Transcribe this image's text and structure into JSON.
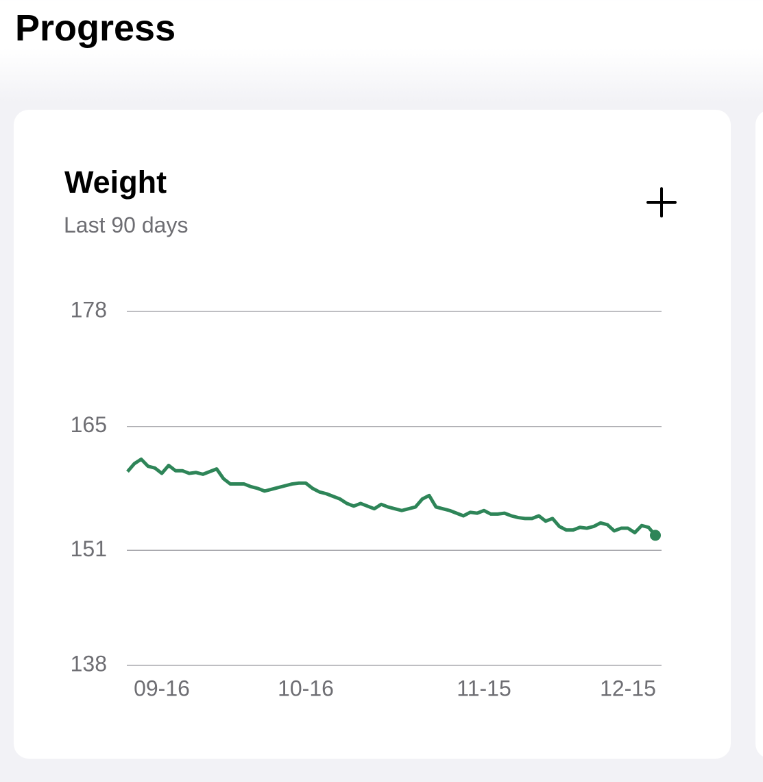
{
  "header": {
    "title": "Progress"
  },
  "card": {
    "title": "Weight",
    "subtitle": "Last 90 days"
  },
  "chart_data": {
    "type": "line",
    "categories": [
      null,
      null,
      null,
      null,
      null,
      "09-16",
      null,
      null,
      null,
      null,
      null,
      null,
      null,
      null,
      null,
      null,
      null,
      null,
      null,
      null,
      null,
      null,
      null,
      null,
      null,
      null,
      "10-16",
      null,
      null,
      null,
      null,
      null,
      null,
      null,
      null,
      null,
      null,
      null,
      null,
      null,
      null,
      null,
      null,
      null,
      null,
      null,
      null,
      null,
      null,
      null,
      null,
      null,
      "11-15",
      null,
      null,
      null,
      null,
      null,
      null,
      null,
      null,
      null,
      null,
      null,
      null,
      null,
      null,
      null,
      null,
      null,
      null,
      null,
      null,
      "12-15",
      null,
      null,
      null,
      null
    ],
    "series": [
      {
        "color": "#2e8558",
        "values": [
          159.9,
          160.8,
          161.3,
          160.5,
          160.3,
          159.7,
          160.6,
          160.0,
          160.0,
          159.7,
          159.8,
          159.6,
          159.9,
          160.2,
          159.1,
          158.5,
          158.5,
          158.5,
          158.2,
          158.0,
          157.7,
          157.9,
          158.1,
          158.3,
          158.5,
          158.6,
          158.6,
          158.0,
          157.6,
          157.4,
          157.1,
          156.8,
          156.3,
          156.0,
          156.3,
          156.0,
          155.7,
          156.2,
          155.9,
          155.7,
          155.5,
          155.7,
          155.9,
          156.8,
          157.2,
          155.9,
          155.7,
          155.5,
          155.2,
          154.9,
          155.3,
          155.2,
          155.5,
          155.1,
          155.1,
          155.2,
          154.9,
          154.7,
          154.6,
          154.6,
          154.9,
          154.3,
          154.6,
          153.7,
          153.3,
          153.3,
          153.6,
          153.5,
          153.7,
          154.1,
          153.9,
          153.2,
          153.5,
          153.5,
          153.0,
          153.8,
          153.6,
          152.7
        ]
      }
    ],
    "ylim": [
      138,
      178
    ],
    "yticks": [
      138,
      151,
      165,
      178
    ],
    "grid": true
  }
}
